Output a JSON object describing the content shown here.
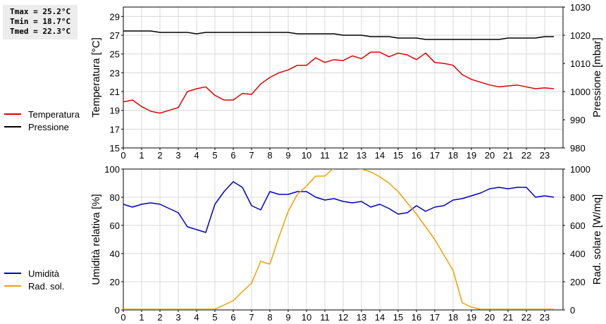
{
  "stats": {
    "tmax": "Tmax = 25.2°C",
    "tmin": "Tmin = 18.7°C",
    "tmed": "Tmed = 22.3°C"
  },
  "legend_top": [
    {
      "label": "Temperatura",
      "color": "#dd0000"
    },
    {
      "label": "Pressione",
      "color": "#000000"
    }
  ],
  "legend_bottom": [
    {
      "label": "Umidità",
      "color": "#0000bb"
    },
    {
      "label": "Rad. sol.",
      "color": "#f0a000"
    }
  ],
  "chart_data": [
    {
      "type": "line",
      "x_ticks": [
        0,
        1,
        2,
        3,
        4,
        5,
        6,
        7,
        8,
        9,
        10,
        11,
        12,
        13,
        14,
        15,
        16,
        17,
        18,
        19,
        20,
        21,
        22,
        23
      ],
      "xlim": [
        0,
        24
      ],
      "ylabel_left": "Temperatura [°C]",
      "ylabel_right": "Pressione [mbar]",
      "ylim_left": [
        15,
        30
      ],
      "yticks_left": [
        15,
        17,
        19,
        21,
        23,
        25,
        27,
        29
      ],
      "ylim_right": [
        980,
        1030
      ],
      "yticks_right": [
        980,
        990,
        1000,
        1010,
        1020,
        1030
      ],
      "grid": true,
      "series": [
        {
          "name": "Temperatura",
          "axis": "left",
          "color": "#dd0000",
          "x": [
            0,
            0.5,
            1,
            1.5,
            2,
            2.5,
            3,
            3.5,
            4,
            4.5,
            5,
            5.5,
            6,
            6.5,
            7,
            7.5,
            8,
            8.5,
            9,
            9.5,
            10,
            10.5,
            11,
            11.5,
            12,
            12.5,
            13,
            13.5,
            14,
            14.5,
            15,
            15.5,
            16,
            16.5,
            17,
            17.5,
            18,
            18.5,
            19,
            19.5,
            20,
            20.5,
            21,
            21.5,
            22,
            22.5,
            23,
            23.5
          ],
          "y": [
            19.9,
            20.1,
            19.4,
            18.9,
            18.7,
            19.0,
            19.3,
            21.0,
            21.3,
            21.5,
            20.6,
            20.1,
            20.1,
            20.8,
            20.7,
            21.8,
            22.5,
            23.0,
            23.3,
            23.8,
            23.8,
            24.6,
            24.1,
            24.4,
            24.3,
            24.8,
            24.5,
            25.2,
            25.2,
            24.7,
            25.1,
            24.9,
            24.4,
            25.1,
            24.1,
            24.0,
            23.8,
            22.8,
            22.3,
            22.0,
            21.7,
            21.5,
            21.6,
            21.7,
            21.5,
            21.3,
            21.4,
            21.3
          ]
        },
        {
          "name": "Pressione",
          "axis": "right",
          "color": "#000000",
          "x": [
            0,
            0.5,
            1,
            1.5,
            2,
            2.5,
            3,
            3.5,
            4,
            4.5,
            5,
            5.5,
            6,
            6.5,
            7,
            7.5,
            8,
            8.5,
            9,
            9.5,
            10,
            10.5,
            11,
            11.5,
            12,
            12.5,
            13,
            13.5,
            14,
            14.5,
            15,
            15.5,
            16,
            16.5,
            17,
            17.5,
            18,
            18.5,
            19,
            19.5,
            20,
            20.5,
            21,
            21.5,
            22,
            22.5,
            23,
            23.5
          ],
          "y": [
            1021.5,
            1021.5,
            1021.5,
            1021.5,
            1021,
            1021,
            1021,
            1021,
            1020.5,
            1021,
            1021,
            1021,
            1021,
            1021,
            1021,
            1021,
            1021,
            1021,
            1021,
            1020.5,
            1020.5,
            1020.5,
            1020.5,
            1020.5,
            1020,
            1020,
            1020,
            1019.5,
            1019.5,
            1019.5,
            1019,
            1019,
            1019,
            1018.5,
            1018.5,
            1018.5,
            1018.5,
            1018.5,
            1018.5,
            1018.5,
            1018.5,
            1018.5,
            1019,
            1019,
            1019,
            1019,
            1019.5,
            1019.5
          ]
        }
      ]
    },
    {
      "type": "line",
      "x_ticks": [
        0,
        1,
        2,
        3,
        4,
        5,
        6,
        7,
        8,
        9,
        10,
        11,
        12,
        13,
        14,
        15,
        16,
        17,
        18,
        19,
        20,
        21,
        22,
        23
      ],
      "xlim": [
        0,
        24
      ],
      "ylabel_left": "Umidità relativa [%]",
      "ylabel_right": "Rad. solare [W/mq]",
      "ylim_left": [
        0,
        100
      ],
      "yticks_left": [
        0,
        20,
        40,
        60,
        80,
        100
      ],
      "ylim_right": [
        0,
        1000
      ],
      "yticks_right": [
        0,
        200,
        400,
        600,
        800,
        1000
      ],
      "grid": true,
      "series": [
        {
          "name": "Umidità",
          "axis": "left",
          "color": "#0000bb",
          "x": [
            0,
            0.5,
            1,
            1.5,
            2,
            2.5,
            3,
            3.5,
            4,
            4.5,
            5,
            5.5,
            6,
            6.5,
            7,
            7.5,
            8,
            8.5,
            9,
            9.5,
            10,
            10.5,
            11,
            11.5,
            12,
            12.5,
            13,
            13.5,
            14,
            14.5,
            15,
            15.5,
            16,
            16.5,
            17,
            17.5,
            18,
            18.5,
            19,
            19.5,
            20,
            20.5,
            21,
            21.5,
            22,
            22.5,
            23,
            23.5
          ],
          "y": [
            75,
            73,
            75,
            76,
            75,
            72,
            69,
            59,
            57,
            55,
            75,
            84,
            91,
            87,
            74,
            71,
            84,
            82,
            82,
            84,
            84,
            80,
            78,
            79,
            77,
            76,
            77,
            73,
            75,
            72,
            68,
            69,
            74,
            70,
            73,
            74,
            78,
            79,
            81,
            83,
            86,
            87,
            86,
            87,
            87,
            80,
            81,
            80
          ]
        },
        {
          "name": "Rad. sol.",
          "axis": "right",
          "color": "#f0a000",
          "x": [
            0,
            0.5,
            1,
            1.5,
            2,
            2.5,
            3,
            3.5,
            4,
            4.5,
            5,
            5.5,
            6,
            6.5,
            7,
            7.5,
            8,
            8.5,
            9,
            9.5,
            10,
            10.5,
            11,
            11.5,
            12,
            12.5,
            13,
            13.5,
            14,
            14.5,
            15,
            15.5,
            16,
            16.5,
            17,
            17.5,
            18,
            18.5,
            19,
            19.5,
            20,
            20.5,
            21,
            21.5,
            22,
            22.5,
            23,
            23.5
          ],
          "y": [
            5,
            5,
            5,
            5,
            5,
            5,
            5,
            5,
            5,
            5,
            5,
            35,
            65,
            130,
            190,
            345,
            325,
            520,
            700,
            820,
            880,
            950,
            950,
            1010,
            1010,
            1010,
            1000,
            980,
            945,
            900,
            840,
            760,
            680,
            590,
            500,
            390,
            280,
            50,
            20,
            5,
            5,
            5,
            5,
            5,
            5,
            5,
            5,
            5
          ]
        }
      ]
    }
  ]
}
